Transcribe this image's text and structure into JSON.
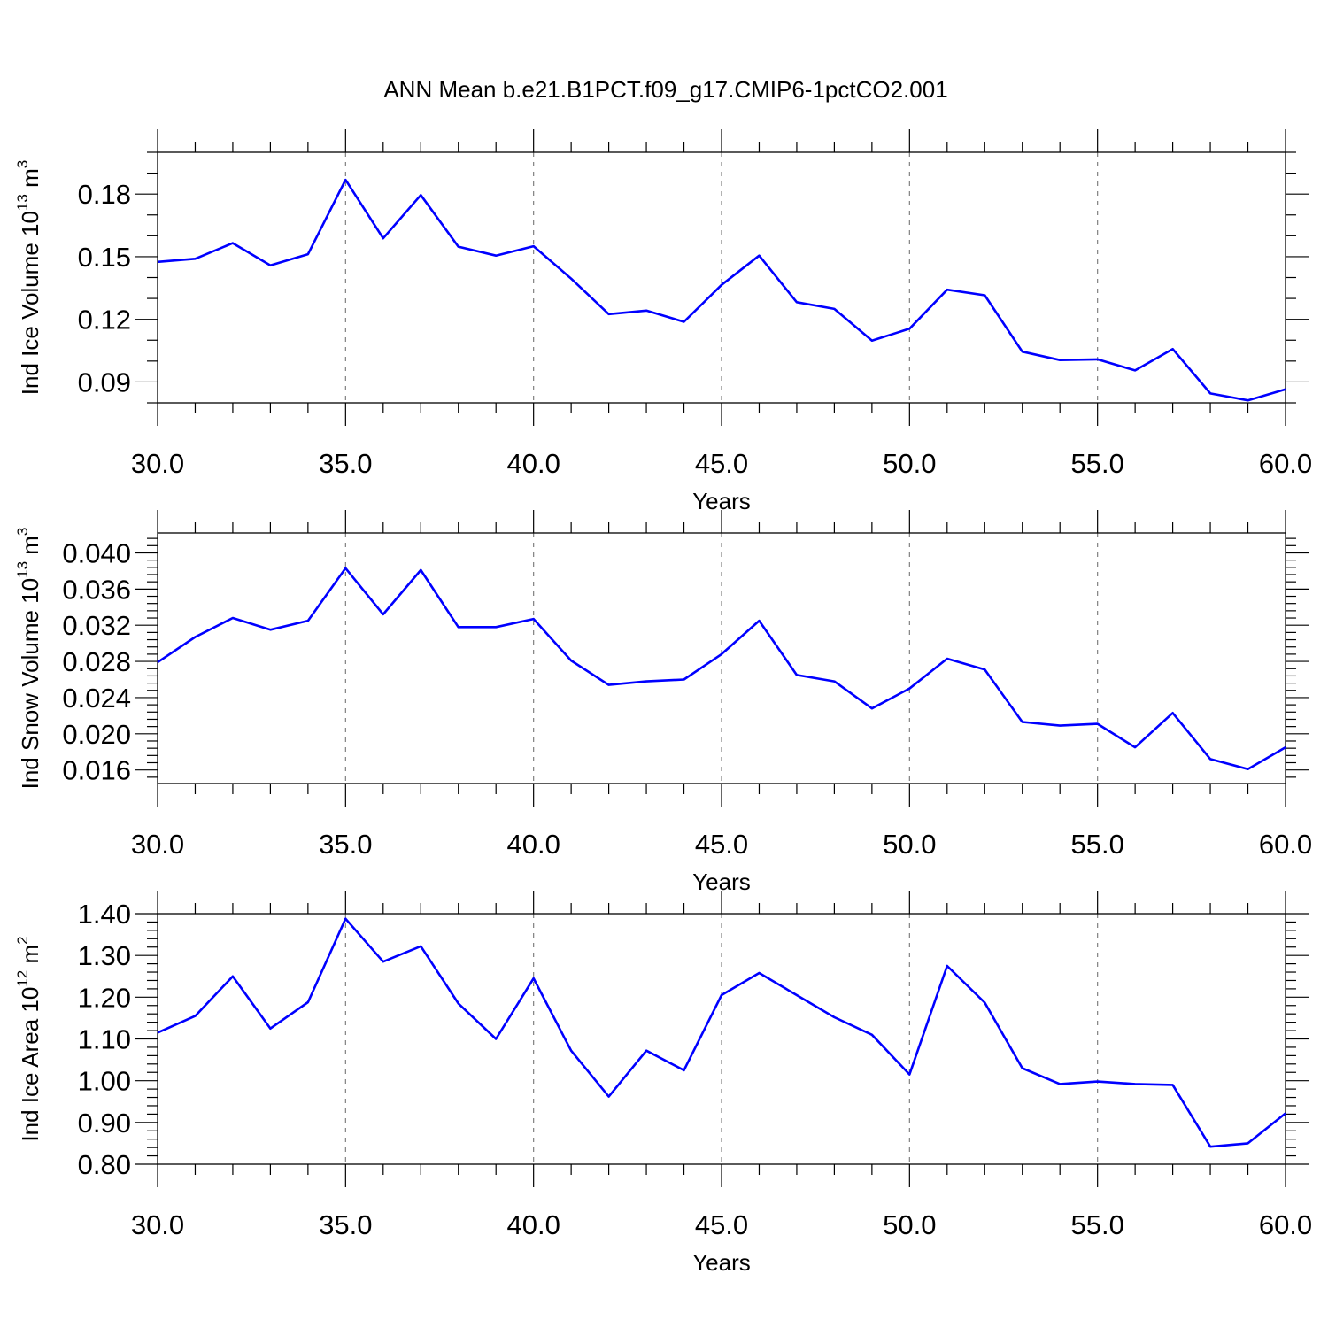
{
  "chart_data": {
    "title": "ANN Mean b.e21.B1PCT.f09_g17.CMIP6-1pctCO2.001",
    "type": "line",
    "colors": {
      "series": "#0000ff",
      "grid": "#808080",
      "frame": "#000000"
    },
    "panels": [
      {
        "name": "ice-volume",
        "type": "line",
        "xlabel": "Years",
        "ylabel": {
          "main": "Ind Ice Volume 10",
          "exponent": "13",
          "unit": " m",
          "unit_exponent": "3"
        },
        "xlim": [
          30,
          60
        ],
        "ylim": [
          0.08,
          0.2
        ],
        "yticks": [
          0.09,
          0.12,
          0.15,
          0.18
        ],
        "ytick_labels": [
          "0.09",
          "0.12",
          "0.15",
          "0.18"
        ],
        "yminor_step": 0.01,
        "grid": "vertical-dashed",
        "x": [
          30,
          31,
          32,
          33,
          34,
          35,
          36,
          37,
          38,
          39,
          40,
          41,
          42,
          43,
          44,
          45,
          46,
          47,
          48,
          49,
          50,
          51,
          52,
          53,
          54,
          55,
          56,
          57,
          58,
          59,
          60
        ],
        "values": [
          0.1475,
          0.149,
          0.1565,
          0.1458,
          0.1512,
          0.1868,
          0.1588,
          0.1795,
          0.1548,
          0.1505,
          0.155,
          0.1395,
          0.1225,
          0.1242,
          0.1188,
          0.1365,
          0.1505,
          0.1282,
          0.125,
          0.1098,
          0.1155,
          0.1342,
          0.1315,
          0.1045,
          0.1005,
          0.1008,
          0.0955,
          0.1058,
          0.0845,
          0.0812,
          0.0865
        ]
      },
      {
        "name": "snow-volume",
        "type": "line",
        "xlabel": "Years",
        "ylabel": {
          "main": "Ind Snow Volume 10",
          "exponent": "13",
          "unit": " m",
          "unit_exponent": "3"
        },
        "xlim": [
          30,
          60
        ],
        "ylim": [
          0.0145,
          0.0422
        ],
        "yticks": [
          0.016,
          0.02,
          0.024,
          0.028,
          0.032,
          0.036,
          0.04
        ],
        "ytick_labels": [
          "0.016",
          "0.020",
          "0.024",
          "0.028",
          "0.032",
          "0.036",
          "0.040"
        ],
        "yminor_step": 0.0008,
        "grid": "vertical-dashed",
        "x": [
          30,
          31,
          32,
          33,
          34,
          35,
          36,
          37,
          38,
          39,
          40,
          41,
          42,
          43,
          44,
          45,
          46,
          47,
          48,
          49,
          50,
          51,
          52,
          53,
          54,
          55,
          56,
          57,
          58,
          59,
          60
        ],
        "values": [
          0.0279,
          0.0307,
          0.0328,
          0.0315,
          0.0325,
          0.0383,
          0.0332,
          0.0381,
          0.0318,
          0.0318,
          0.0327,
          0.0281,
          0.0254,
          0.0258,
          0.026,
          0.0288,
          0.0325,
          0.0265,
          0.0258,
          0.0228,
          0.025,
          0.0283,
          0.0271,
          0.0213,
          0.0209,
          0.0211,
          0.0185,
          0.0223,
          0.0172,
          0.0161,
          0.0185
        ]
      },
      {
        "name": "ice-area",
        "type": "line",
        "xlabel": "Years",
        "ylabel": {
          "main": "Ind Ice Area 10",
          "exponent": "12",
          "unit": " m",
          "unit_exponent": "2"
        },
        "xlim": [
          30,
          60
        ],
        "ylim": [
          0.8,
          1.4
        ],
        "yticks": [
          0.8,
          0.9,
          1.0,
          1.1,
          1.2,
          1.3,
          1.4
        ],
        "ytick_labels": [
          "0.80",
          "0.90",
          "1.00",
          "1.10",
          "1.20",
          "1.30",
          "1.40"
        ],
        "yminor_step": 0.02,
        "grid": "vertical-dashed",
        "x": [
          30,
          31,
          32,
          33,
          34,
          35,
          36,
          37,
          38,
          39,
          40,
          41,
          42,
          43,
          44,
          45,
          46,
          47,
          48,
          49,
          50,
          51,
          52,
          53,
          54,
          55,
          56,
          57,
          58,
          59,
          60
        ],
        "values": [
          1.115,
          1.155,
          1.25,
          1.125,
          1.188,
          1.388,
          1.285,
          1.322,
          1.185,
          1.1,
          1.245,
          1.072,
          0.962,
          1.072,
          1.025,
          1.205,
          1.258,
          1.205,
          1.152,
          1.11,
          1.015,
          1.275,
          1.187,
          1.03,
          0.992,
          0.998,
          0.992,
          0.99,
          0.842,
          0.85,
          0.922
        ]
      }
    ],
    "xticks": [
      30,
      35,
      40,
      45,
      50,
      55,
      60
    ],
    "xtick_labels": [
      "30.0",
      "35.0",
      "40.0",
      "45.0",
      "50.0",
      "55.0",
      "60.0"
    ]
  }
}
